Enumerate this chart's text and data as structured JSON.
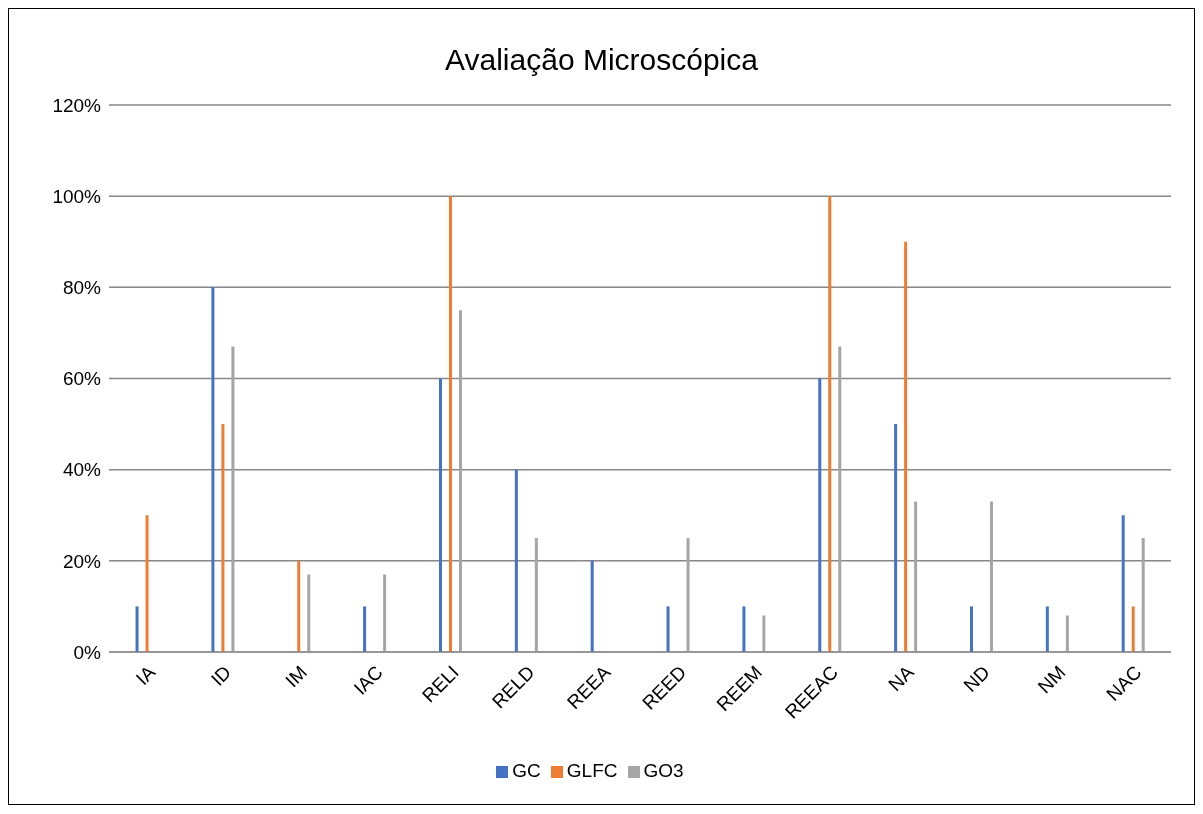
{
  "chart_data": {
    "type": "bar",
    "title": "Avaliação Microscópica",
    "categories": [
      "IA",
      "ID",
      "IM",
      "IAC",
      "RELI",
      "RELD",
      "REEA",
      "REED",
      "REEM",
      "REEAC",
      "NA",
      "ND",
      "NM",
      "NAC"
    ],
    "series": [
      {
        "name": "GC",
        "color": "#4472c4",
        "values": [
          10,
          80,
          0,
          10,
          60,
          40,
          20,
          10,
          10,
          60,
          50,
          10,
          10,
          30
        ]
      },
      {
        "name": "GLFC",
        "color": "#ed7d31",
        "values": [
          30,
          50,
          20,
          0,
          100,
          0,
          0,
          0,
          0,
          100,
          90,
          0,
          0,
          10
        ]
      },
      {
        "name": "GO3",
        "color": "#a5a5a5",
        "values": [
          0,
          67,
          17,
          17,
          75,
          25,
          0,
          25,
          8,
          67,
          33,
          33,
          8,
          25
        ]
      }
    ],
    "ylim": [
      0,
      120
    ],
    "yticks": [
      {
        "value": 0,
        "label": "0%"
      },
      {
        "value": 20,
        "label": "20%"
      },
      {
        "value": 40,
        "label": "40%"
      },
      {
        "value": 60,
        "label": "60%"
      },
      {
        "value": 80,
        "label": "80%"
      },
      {
        "value": 100,
        "label": "100%"
      },
      {
        "value": 120,
        "label": "120%"
      }
    ],
    "grid": "y",
    "legend": "bottom"
  }
}
